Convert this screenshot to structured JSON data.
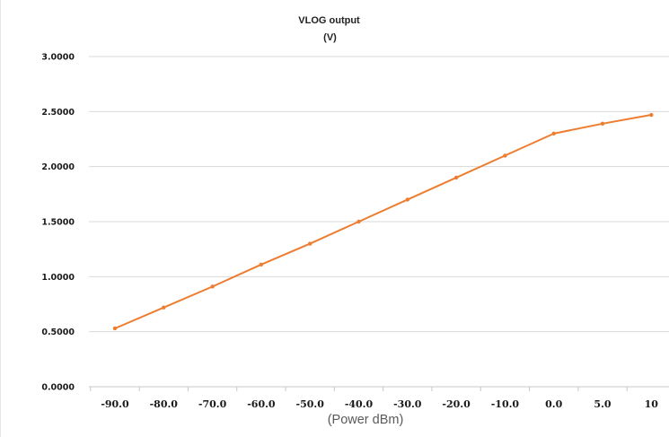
{
  "chart_data": {
    "type": "line",
    "title": "VLOG output",
    "subtitle": "(V)",
    "xlabel": "(Power dBm)",
    "ylabel": "",
    "categories": [
      "-90.0",
      "-80.0",
      "-70.0",
      "-60.0",
      "-50.0",
      "-40.0",
      "-30.0",
      "-20.0",
      "-10.0",
      "0.0",
      "5.0",
      "10"
    ],
    "ytick_labels": [
      "0.0000",
      "0.5000",
      "1.0000",
      "1.5000",
      "2.0000",
      "2.5000",
      "3.0000"
    ],
    "ytick_values": [
      0,
      0.5,
      1.0,
      1.5,
      2.0,
      2.5,
      3.0
    ],
    "ylim": [
      0,
      3.0
    ],
    "grid": true,
    "legend": "none",
    "series": [
      {
        "values": [
          0.53,
          0.72,
          0.91,
          1.11,
          1.3,
          1.5,
          1.7,
          1.9,
          2.1,
          2.3,
          2.39,
          2.47
        ],
        "color": "#ed7d31"
      }
    ]
  },
  "colors": {
    "line": "#ed7d31",
    "gridline": "#d9d9d9",
    "axis": "#d9d9d9"
  }
}
